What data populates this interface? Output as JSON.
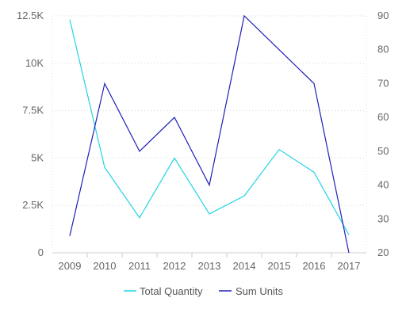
{
  "chart_data": {
    "type": "line",
    "categories": [
      "2009",
      "2010",
      "2011",
      "2012",
      "2013",
      "2014",
      "2015",
      "2016",
      "2017"
    ],
    "title": "",
    "xlabel": "",
    "ylabel": "",
    "ylim_left": [
      0,
      12500
    ],
    "ylim_right": [
      20,
      90
    ],
    "left_ticks": [
      "0",
      "2.5K",
      "5K",
      "7.5K",
      "10K",
      "12.5K"
    ],
    "right_ticks": [
      "20",
      "30",
      "40",
      "50",
      "60",
      "70",
      "80",
      "90"
    ],
    "grid": true,
    "legend_position": "bottom",
    "series": [
      {
        "name": "Total Quantity",
        "axis": "left",
        "color": "#22d3e6",
        "values": [
          12300,
          4500,
          1850,
          5000,
          2050,
          3000,
          5450,
          4250,
          950
        ]
      },
      {
        "name": "Sum Units",
        "axis": "right",
        "color": "#1f1fb8",
        "values": [
          25,
          70,
          50,
          60,
          40,
          90,
          80,
          70,
          20
        ]
      }
    ]
  }
}
